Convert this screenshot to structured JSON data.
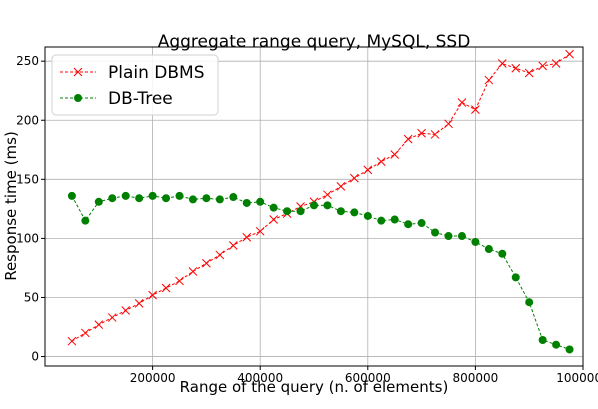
{
  "chart_data": {
    "type": "line",
    "title": "Aggregate range query, MySQL, SSD",
    "xlabel": "Range of the query  (n. of elements)",
    "ylabel": "Response time (ms)",
    "xlim": [
      0,
      1000000
    ],
    "ylim": [
      -8,
      262
    ],
    "xticks": [
      200000,
      400000,
      600000,
      800000,
      1000000
    ],
    "xtick_labels": [
      "200000",
      "400000",
      "600000",
      "800000",
      "1000000"
    ],
    "yticks": [
      0,
      50,
      100,
      150,
      200,
      250
    ],
    "ytick_labels": [
      "0",
      "50",
      "100",
      "150",
      "200",
      "250"
    ],
    "grid": true,
    "legend": "top-left",
    "series": [
      {
        "name": "Plain DBMS",
        "color": "#ff0000",
        "marker": "x",
        "linestyle": "dashed",
        "x": [
          50000,
          75000,
          100000,
          125000,
          150000,
          175000,
          200000,
          225000,
          250000,
          275000,
          300000,
          325000,
          350000,
          375000,
          400000,
          425000,
          450000,
          475000,
          500000,
          525000,
          550000,
          575000,
          600000,
          625000,
          650000,
          675000,
          700000,
          725000,
          750000,
          775000,
          800000,
          825000,
          850000,
          875000,
          900000,
          925000,
          950000,
          975000
        ],
        "values": [
          13,
          20,
          27,
          33,
          39,
          45,
          52,
          58,
          64,
          72,
          79,
          86,
          94,
          101,
          106,
          116,
          121,
          127,
          131,
          137,
          144,
          151,
          158,
          165,
          171,
          184,
          189,
          188,
          197,
          215,
          209,
          234,
          248,
          244,
          240,
          246,
          248,
          256
        ]
      },
      {
        "name": "DB-Tree",
        "color": "#008000",
        "marker": "o",
        "linestyle": "dashed",
        "x": [
          50000,
          75000,
          100000,
          125000,
          150000,
          175000,
          200000,
          225000,
          250000,
          275000,
          300000,
          325000,
          350000,
          375000,
          400000,
          425000,
          450000,
          475000,
          500000,
          525000,
          550000,
          575000,
          600000,
          625000,
          650000,
          675000,
          700000,
          725000,
          750000,
          775000,
          800000,
          825000,
          850000,
          875000,
          900000,
          925000,
          950000,
          975000
        ],
        "values": [
          136,
          115,
          131,
          134,
          136,
          134,
          136,
          134,
          136,
          133,
          134,
          133,
          135,
          130,
          131,
          126,
          123,
          123,
          128,
          128,
          123,
          122,
          119,
          115,
          116,
          112,
          113,
          105,
          102,
          102,
          97,
          91,
          87,
          67,
          46,
          14,
          10,
          6
        ]
      }
    ]
  }
}
